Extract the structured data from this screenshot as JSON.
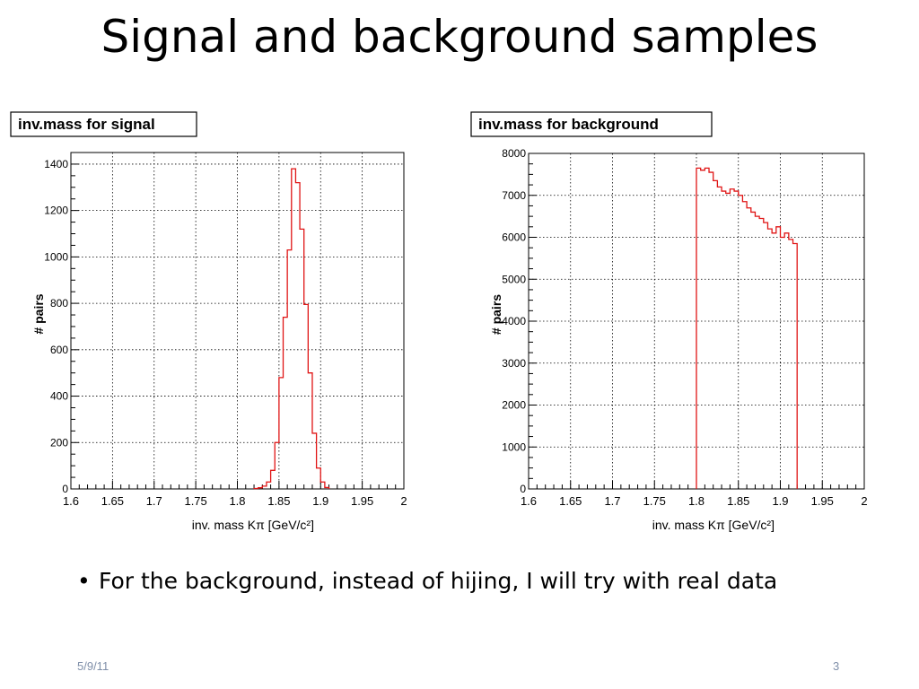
{
  "slide": {
    "title": "Signal and background samples",
    "bullet": "For the background, instead of hijing, I will try with real data",
    "footer_date": "5/9/11",
    "page_number": "3"
  },
  "colors": {
    "histogram_line": "#e01515",
    "grid": "#000000",
    "frame": "#000000"
  },
  "chart_data": [
    {
      "type": "bar",
      "style": "step-histogram",
      "title": "inv.mass for signal",
      "xlabel": "inv. mass Kπ [GeV/c²]",
      "ylabel": "# pairs",
      "xlim": [
        1.6,
        2.0
      ],
      "ylim": [
        0,
        1450
      ],
      "xticks": [
        "1.6",
        "1.65",
        "1.7",
        "1.75",
        "1.8",
        "1.85",
        "1.9",
        "1.95",
        "2"
      ],
      "yticks": [
        "0",
        "200",
        "400",
        "600",
        "800",
        "1000",
        "1200",
        "1400"
      ],
      "grid": true,
      "bin_width": 0.005,
      "bins": [
        [
          1.82,
          2
        ],
        [
          1.825,
          5
        ],
        [
          1.83,
          12
        ],
        [
          1.835,
          30
        ],
        [
          1.84,
          80
        ],
        [
          1.845,
          200
        ],
        [
          1.85,
          480
        ],
        [
          1.855,
          740
        ],
        [
          1.86,
          1030
        ],
        [
          1.865,
          1380
        ],
        [
          1.87,
          1320
        ],
        [
          1.875,
          1120
        ],
        [
          1.88,
          795
        ],
        [
          1.885,
          500
        ],
        [
          1.89,
          240
        ],
        [
          1.895,
          90
        ],
        [
          1.9,
          30
        ],
        [
          1.905,
          6
        ]
      ]
    },
    {
      "type": "bar",
      "style": "step-histogram",
      "title": "inv.mass for background",
      "xlabel": "inv. mass Kπ [GeV/c²]",
      "ylabel": "# pairs",
      "xlim": [
        1.6,
        2.0
      ],
      "ylim": [
        0,
        8000
      ],
      "xticks": [
        "1.6",
        "1.65",
        "1.7",
        "1.75",
        "1.8",
        "1.85",
        "1.9",
        "1.95",
        "2"
      ],
      "yticks": [
        "0",
        "1000",
        "2000",
        "3000",
        "4000",
        "5000",
        "6000",
        "7000",
        "8000"
      ],
      "grid": true,
      "bin_width": 0.005,
      "bins": [
        [
          1.8,
          7650
        ],
        [
          1.805,
          7600
        ],
        [
          1.81,
          7650
        ],
        [
          1.815,
          7550
        ],
        [
          1.82,
          7350
        ],
        [
          1.825,
          7200
        ],
        [
          1.83,
          7100
        ],
        [
          1.835,
          7050
        ],
        [
          1.84,
          7150
        ],
        [
          1.845,
          7100
        ],
        [
          1.85,
          7000
        ],
        [
          1.855,
          6850
        ],
        [
          1.86,
          6700
        ],
        [
          1.865,
          6600
        ],
        [
          1.87,
          6500
        ],
        [
          1.875,
          6450
        ],
        [
          1.88,
          6350
        ],
        [
          1.885,
          6200
        ],
        [
          1.89,
          6100
        ],
        [
          1.895,
          6250
        ],
        [
          1.9,
          6000
        ],
        [
          1.905,
          6100
        ],
        [
          1.91,
          5950
        ],
        [
          1.915,
          5850
        ]
      ]
    }
  ]
}
